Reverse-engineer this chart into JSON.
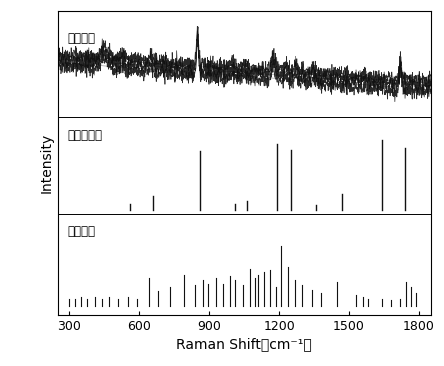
{
  "xlabel": "Raman Shift（cm⁻¹）",
  "ylabel": "Intensity",
  "xmin": 250,
  "xmax": 1850,
  "label_top": "原始谱图",
  "label_mid": "本发明算法",
  "label_bot": "常规算法",
  "background_color": "#ffffff",
  "line_color": "#111111",
  "mid_peaks": [
    560,
    660,
    860,
    1010,
    1060,
    1190,
    1250,
    1360,
    1470,
    1640,
    1740
  ],
  "mid_heights": [
    0.08,
    0.18,
    0.8,
    0.08,
    0.12,
    0.9,
    0.82,
    0.06,
    0.22,
    0.95,
    0.85
  ],
  "bot_peaks": [
    300,
    325,
    350,
    375,
    410,
    440,
    470,
    510,
    550,
    590,
    640,
    680,
    730,
    790,
    840,
    875,
    895,
    930,
    960,
    990,
    1010,
    1045,
    1075,
    1095,
    1110,
    1135,
    1160,
    1185,
    1210,
    1240,
    1270,
    1300,
    1340,
    1380,
    1450,
    1530,
    1560,
    1580,
    1640,
    1680,
    1720,
    1745,
    1765,
    1785
  ],
  "bot_heights": [
    0.1,
    0.1,
    0.12,
    0.1,
    0.12,
    0.1,
    0.12,
    0.1,
    0.12,
    0.1,
    0.38,
    0.2,
    0.25,
    0.42,
    0.28,
    0.35,
    0.3,
    0.38,
    0.3,
    0.4,
    0.35,
    0.28,
    0.5,
    0.38,
    0.42,
    0.45,
    0.48,
    0.25,
    0.8,
    0.52,
    0.35,
    0.28,
    0.22,
    0.18,
    0.32,
    0.15,
    0.12,
    0.1,
    0.1,
    0.08,
    0.1,
    0.32,
    0.26,
    0.18
  ],
  "noise_seed": 42,
  "n_noise_points": 1500
}
